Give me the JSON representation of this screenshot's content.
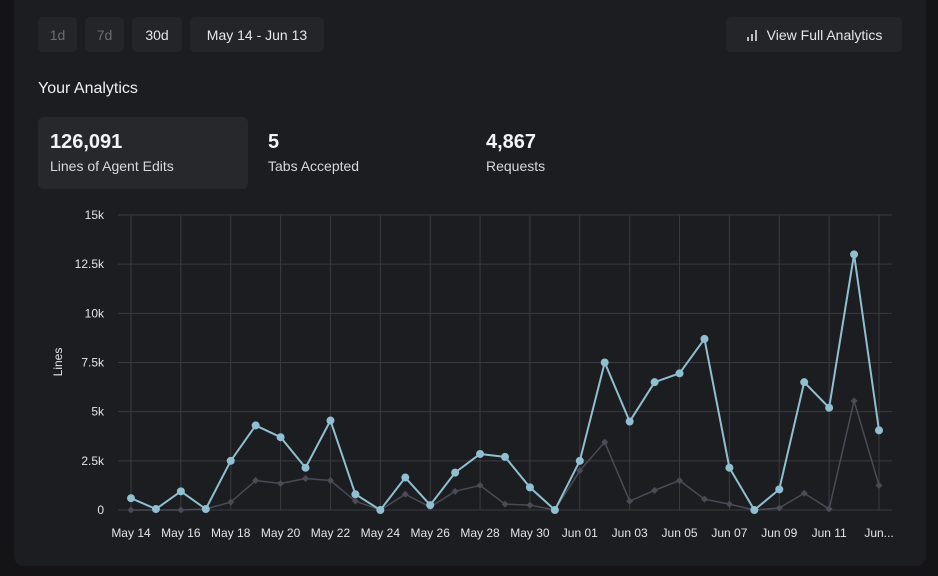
{
  "toolbar": {
    "ranges": [
      {
        "label": "1d",
        "enabled": false
      },
      {
        "label": "7d",
        "enabled": false
      },
      {
        "label": "30d",
        "enabled": true
      }
    ],
    "date_range": "May 14 - Jun 13",
    "view_full": "View Full Analytics",
    "view_full_icon": "bar-chart-icon"
  },
  "section_title": "Your Analytics",
  "stats": [
    {
      "value": "126,091",
      "label": "Lines of Agent Edits",
      "selected": true
    },
    {
      "value": "5",
      "label": "Tabs Accepted",
      "selected": false
    },
    {
      "value": "4,867",
      "label": "Requests",
      "selected": false
    }
  ],
  "chart_data": {
    "type": "line",
    "ylabel": "Lines",
    "xlabel": "",
    "ylim": [
      0,
      15000
    ],
    "yticks": [
      0,
      2500,
      5000,
      7500,
      10000,
      12500,
      15000
    ],
    "ytick_labels": [
      "0",
      "2.5k",
      "5k",
      "7.5k",
      "10k",
      "12.5k",
      "15k"
    ],
    "grid": true,
    "x": [
      "May 14",
      "May 15",
      "May 16",
      "May 17",
      "May 18",
      "May 19",
      "May 20",
      "May 21",
      "May 22",
      "May 23",
      "May 24",
      "May 25",
      "May 26",
      "May 27",
      "May 28",
      "May 29",
      "May 30",
      "May 31",
      "Jun 01",
      "Jun 02",
      "Jun 03",
      "Jun 04",
      "Jun 05",
      "Jun 06",
      "Jun 07",
      "Jun 08",
      "Jun 09",
      "Jun 10",
      "Jun 11",
      "Jun 12",
      "Jun 13"
    ],
    "xtick_labels": [
      "May 14",
      "May 16",
      "May 18",
      "May 20",
      "May 22",
      "May 24",
      "May 26",
      "May 28",
      "May 30",
      "Jun 01",
      "Jun 03",
      "Jun 05",
      "Jun 07",
      "Jun 09",
      "Jun 11",
      "Jun..."
    ],
    "series": [
      {
        "color": "#8fbfd0",
        "marker": "circle",
        "values": [
          600,
          50,
          950,
          50,
          2500,
          4300,
          3700,
          2150,
          4550,
          800,
          0,
          1650,
          250,
          1900,
          2850,
          2700,
          1150,
          0,
          2500,
          7500,
          4500,
          6500,
          6950,
          8700,
          2150,
          0,
          1050,
          6500,
          5200,
          13000,
          4050
        ]
      },
      {
        "color": "#4a4b55",
        "marker": "diamond",
        "values": [
          0,
          0,
          0,
          50,
          400,
          1500,
          1350,
          1600,
          1500,
          450,
          0,
          800,
          150,
          950,
          1250,
          300,
          250,
          0,
          2000,
          3450,
          450,
          1000,
          1500,
          550,
          300,
          0,
          100,
          850,
          50,
          5550,
          1250
        ]
      }
    ]
  }
}
